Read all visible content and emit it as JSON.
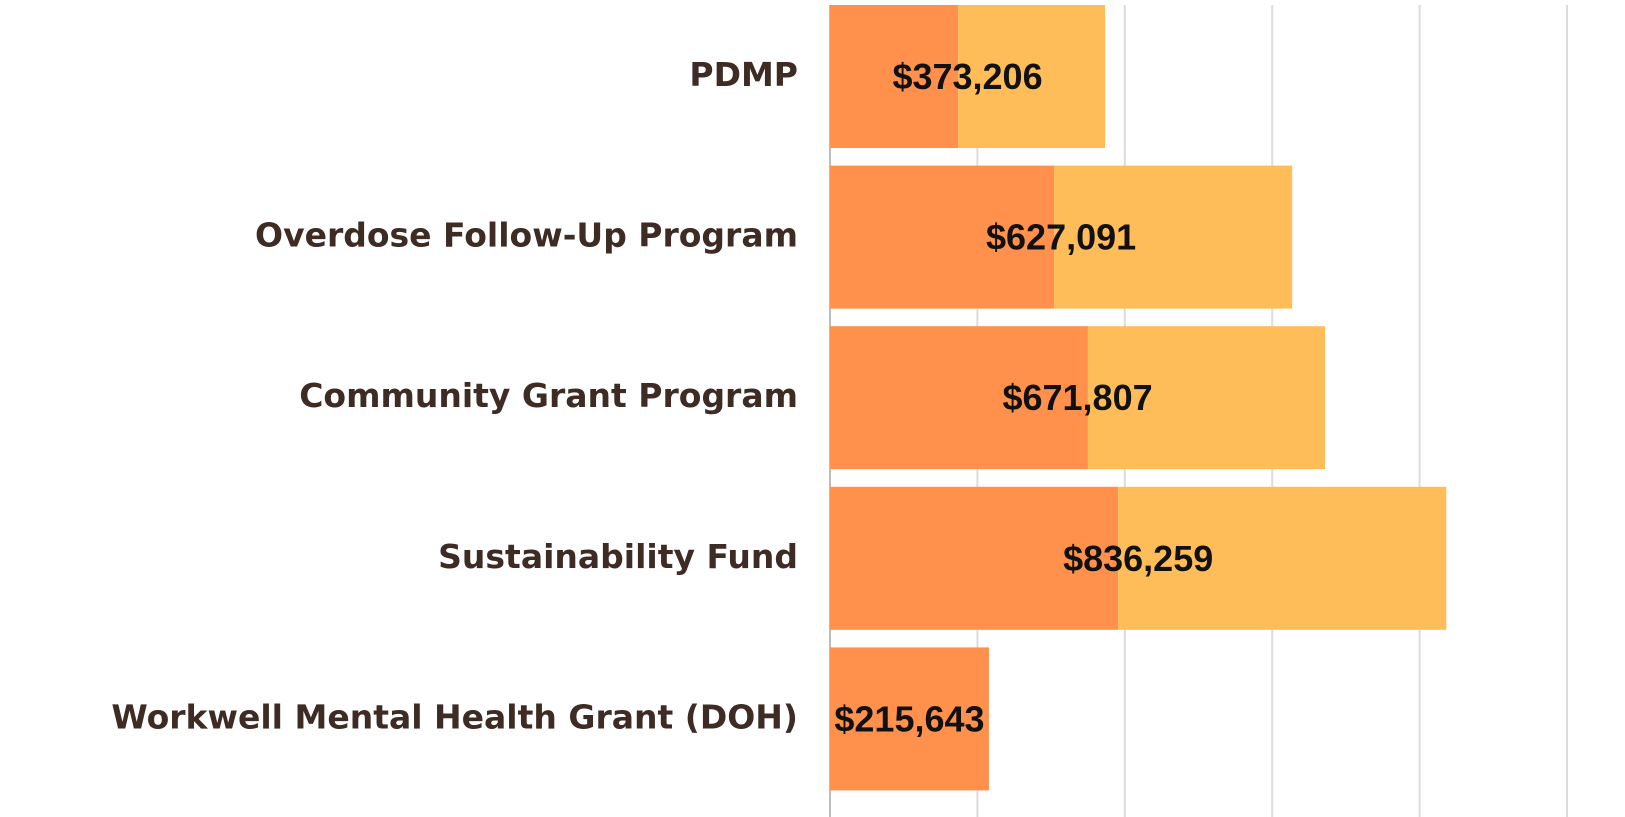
{
  "chart_data": {
    "type": "stacked_barh",
    "categories": [
      "PDMP",
      "Overdose Follow-Up Program",
      "Community Grant Program",
      "Sustainability Fund",
      "Workwell Mental Health Grant (DOH)"
    ],
    "series": [
      {
        "color": "#ff914d",
        "values": [
          174000,
          304000,
          350000,
          391000,
          215643
        ]
      },
      {
        "color": "#ffbd59",
        "values": [
          199206,
          323091,
          321807,
          445259,
          0
        ]
      }
    ],
    "totals": [
      373206,
      627091,
      671807,
      836259,
      215643
    ],
    "total_labels": [
      "$373,206",
      "$627,091",
      "$671,807",
      "$836,259",
      "$215,643"
    ],
    "xlim": [
      0,
      1000000
    ],
    "xticks": [
      0,
      200000,
      400000,
      600000,
      800000,
      1000000
    ],
    "grid": true
  }
}
